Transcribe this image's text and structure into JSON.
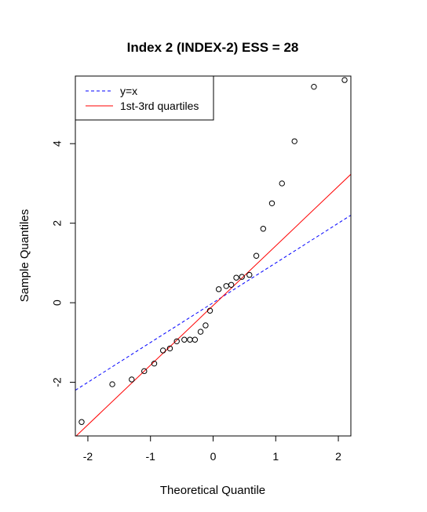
{
  "chart_data": {
    "type": "scatter",
    "title": "Index 2 (INDEX-2) ESS = 28",
    "xlabel": "Theoretical Quantile",
    "ylabel": "Sample Quantiles",
    "xlim": [
      -2.2,
      2.2
    ],
    "ylim": [
      -3.35,
      5.7
    ],
    "x_ticks": [
      -2,
      -1,
      0,
      1,
      2
    ],
    "y_ticks": [
      -2,
      0,
      2,
      4
    ],
    "points": {
      "x": [
        -2.1,
        -1.61,
        -1.3,
        -1.1,
        -0.94,
        -0.8,
        -0.69,
        -0.58,
        -0.46,
        -0.37,
        -0.29,
        -0.2,
        -0.12,
        -0.05,
        0.09,
        0.21,
        0.29,
        0.37,
        0.46,
        0.58,
        0.69,
        0.8,
        0.94,
        1.1,
        1.3,
        1.61,
        2.1
      ],
      "y": [
        -3.0,
        -2.05,
        -1.93,
        -1.72,
        -1.53,
        -1.2,
        -1.15,
        -0.97,
        -0.93,
        -0.93,
        -0.93,
        -0.73,
        -0.57,
        -0.2,
        0.34,
        0.42,
        0.45,
        0.63,
        0.65,
        0.7,
        1.18,
        1.86,
        2.5,
        3.0,
        4.06,
        5.43,
        5.6
      ]
    },
    "lines": [
      {
        "name": "y=x",
        "slope": 1.0,
        "intercept": 0.0,
        "color": "#0000ff",
        "dash": "dashed"
      },
      {
        "name": "1st-3rd quartiles",
        "slope": 1.5,
        "intercept": -0.07,
        "color": "#ff0000",
        "dash": "solid"
      }
    ],
    "legend": {
      "position": "top-left",
      "entries": [
        "y=x",
        "1st-3rd quartiles"
      ]
    },
    "grid": false
  }
}
